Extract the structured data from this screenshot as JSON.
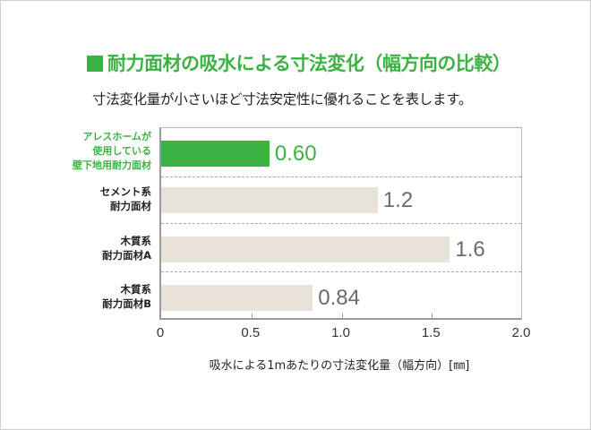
{
  "title": "耐力面材の吸水による寸法変化（幅方向の比較）",
  "subtitle": "寸法変化量が小さいほど寸法安定性に優れることを表します。",
  "colors": {
    "highlight": "#3db244",
    "bar_default": "#e8e2d9",
    "value_default": "#6b6b6b"
  },
  "chart_data": {
    "type": "bar",
    "orientation": "horizontal",
    "title": "耐力面材の吸水による寸法変化（幅方向の比較）",
    "subtitle": "寸法変化量が小さいほど寸法安定性に優れることを表します。",
    "categories": [
      "アレスホームが使用している壁下地用耐力面材",
      "セメント系耐力面材",
      "木質系耐力面材A",
      "木質系耐力面材B"
    ],
    "values": [
      0.6,
      1.2,
      1.6,
      0.84
    ],
    "value_labels": [
      "0.60",
      "1.2",
      "1.6",
      "0.84"
    ],
    "xlabel": "吸水による1mあたりの寸法変化量（幅方向）[㎜]",
    "ylabel": "",
    "xlim": [
      0,
      2.0
    ],
    "xticks": [
      "0",
      "0.5",
      "1.0",
      "1.5",
      "2.0"
    ],
    "grid": "dashed separators between categories",
    "legend": "none",
    "highlighted_index": 0
  },
  "categories": [
    {
      "lines": [
        "アレスホームが",
        "使用している",
        "壁下地用耐力面材"
      ],
      "value": 0.6,
      "label": "0.60",
      "highlight": true
    },
    {
      "lines": [
        "セメント系",
        "耐力面材"
      ],
      "value": 1.2,
      "label": "1.2",
      "highlight": false
    },
    {
      "lines": [
        "木質系",
        "耐力面材A"
      ],
      "value": 1.6,
      "label": "1.6",
      "highlight": false
    },
    {
      "lines": [
        "木質系",
        "耐力面材B"
      ],
      "value": 0.84,
      "label": "0.84",
      "highlight": false
    }
  ],
  "axis": {
    "ticks": [
      {
        "value": 0,
        "label": "0"
      },
      {
        "value": 0.5,
        "label": "0.5"
      },
      {
        "value": 1.0,
        "label": "1.0"
      },
      {
        "value": 1.5,
        "label": "1.5"
      },
      {
        "value": 2.0,
        "label": "2.0"
      }
    ],
    "xlabel": "吸水による1mあたりの寸法変化量（幅方向）[㎜]"
  }
}
